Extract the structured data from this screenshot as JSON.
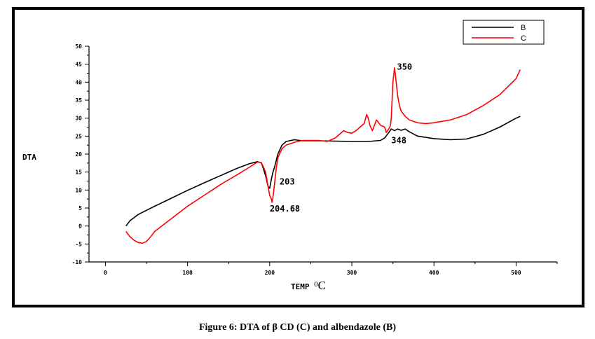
{
  "caption": "Figure 6: DTA of β CD (C) and albendazole (B)",
  "chart_data": {
    "type": "line",
    "xlabel_main": "TEMP ",
    "xlabel_sup": "0",
    "xlabel_unit": "C",
    "ylabel": "DTA",
    "xlim": [
      -20,
      550
    ],
    "ylim": [
      -10,
      50
    ],
    "x_ticks": [
      "0",
      "100",
      "200",
      "300",
      "400",
      "500"
    ],
    "y_ticks": [
      "-10",
      "-5",
      "0",
      "5",
      "10",
      "15",
      "20",
      "25",
      "30",
      "35",
      "40",
      "45",
      "50"
    ],
    "legend_position": "top-right",
    "series": [
      {
        "name": "B",
        "color": "#000000",
        "x": [
          25,
          30,
          40,
          60,
          80,
          100,
          120,
          140,
          160,
          175,
          185,
          190,
          195,
          198,
          200,
          202,
          204,
          206,
          210,
          215,
          220,
          230,
          240,
          260,
          280,
          300,
          320,
          335,
          340,
          345,
          348,
          352,
          356,
          360,
          365,
          370,
          380,
          400,
          420,
          440,
          460,
          480,
          500,
          505
        ],
        "y": [
          0,
          1.5,
          3.2,
          5.5,
          7.7,
          9.9,
          12,
          14,
          16,
          17.3,
          17.9,
          17.5,
          14,
          11,
          10.5,
          13,
          15,
          16.5,
          20,
          22.5,
          23.5,
          24,
          23.7,
          23.7,
          23.6,
          23.5,
          23.5,
          23.8,
          24.5,
          26,
          27,
          26.5,
          27,
          26.6,
          27,
          26.2,
          25,
          24.3,
          24,
          24.2,
          25.5,
          27.5,
          30,
          30.5
        ]
      },
      {
        "name": "C",
        "color": "#ff0000",
        "x": [
          25,
          30,
          35,
          40,
          45,
          50,
          55,
          60,
          80,
          100,
          120,
          140,
          160,
          175,
          185,
          190,
          195,
          198,
          200,
          202,
          203,
          204,
          206,
          208,
          210,
          215,
          220,
          230,
          240,
          260,
          270,
          280,
          290,
          295,
          300,
          305,
          310,
          315,
          318,
          320,
          322,
          325,
          330,
          335,
          340,
          342,
          345,
          347,
          348,
          350,
          352,
          354,
          356,
          358,
          360,
          365,
          370,
          380,
          390,
          400,
          420,
          440,
          460,
          480,
          500,
          505
        ],
        "y": [
          -1.5,
          -3,
          -4,
          -4.6,
          -4.8,
          -4.3,
          -3,
          -1.5,
          2,
          5.5,
          8.5,
          11.5,
          14.2,
          16.3,
          17.8,
          17.6,
          15,
          11,
          8.5,
          7.5,
          6.6,
          8,
          12,
          16,
          19,
          21.5,
          22.5,
          23.3,
          23.8,
          23.8,
          23.5,
          24.5,
          26.5,
          26,
          25.8,
          26.5,
          27.5,
          28.5,
          31,
          30,
          28,
          26.5,
          29.5,
          28,
          27.5,
          26,
          27,
          28,
          30,
          40,
          44,
          40,
          36,
          33.5,
          32,
          30.5,
          29.5,
          28.7,
          28.5,
          28.7,
          29.5,
          31,
          33.5,
          36.5,
          41,
          43.5
        ]
      }
    ],
    "annotations": [
      {
        "text": "350",
        "x": 355,
        "y": 43.5
      },
      {
        "text": "348",
        "x": 348,
        "y": 23
      },
      {
        "text": "203",
        "x": 212,
        "y": 11.5
      },
      {
        "text": "204.68",
        "x": 200,
        "y": 4
      }
    ]
  }
}
